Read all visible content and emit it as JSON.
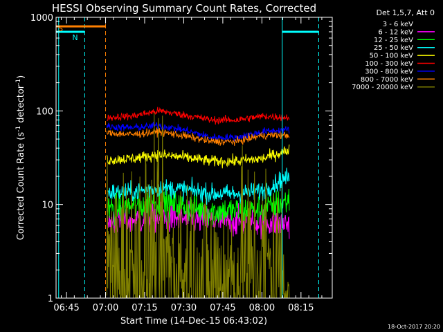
{
  "chart_data": {
    "type": "line",
    "title": "HESSI Observing Summary Count Rates, Corrected",
    "xlabel": "Start Time (14-Dec-15 06:43:02)",
    "ylabel_main": "Corrected Count Rate (s",
    "ylabel_sup1": "-1",
    "ylabel_mid": " detector",
    "ylabel_sup2": "-1",
    "ylabel_end": ")",
    "y_scale": "log",
    "ylim": [
      1,
      1000
    ],
    "xlim_minutes": [
      -2.0,
      104.0
    ],
    "x_axis_start_label": "06:43:02",
    "x_ticks": [
      {
        "minutes": 2,
        "label": "06:45"
      },
      {
        "minutes": 17,
        "label": "07:00"
      },
      {
        "minutes": 32,
        "label": "07:15"
      },
      {
        "minutes": 47,
        "label": "07:30"
      },
      {
        "minutes": 62,
        "label": "07:45"
      },
      {
        "minutes": 77,
        "label": "08:00"
      },
      {
        "minutes": 92,
        "label": "08:15"
      }
    ],
    "y_ticks": [
      {
        "value": 1,
        "label": "1"
      },
      {
        "value": 10,
        "label": "10"
      },
      {
        "value": 100,
        "label": "100"
      },
      {
        "value": 1000,
        "label": "1000"
      }
    ],
    "data_window_minutes": [
      17.5,
      87.5
    ],
    "legend_header": "Det 1,5,7, Att 0",
    "series": [
      {
        "name": "3 - 6 keV",
        "color": "#000000",
        "base": [
          1.5,
          2.2,
          2.5,
          2.2,
          2.0,
          2.2,
          2.6,
          2.0
        ],
        "noise": 0.5
      },
      {
        "name": "6 - 12 keV",
        "color": "#ff00ff",
        "base": [
          6.5,
          6.8,
          7.2,
          7.0,
          6.8,
          6.5,
          6.5,
          6.3
        ],
        "noise": 0.08
      },
      {
        "name": "12 - 25 keV",
        "color": "#00ff00",
        "base": [
          9.0,
          9.5,
          10.5,
          9.5,
          8.5,
          8.5,
          9.0,
          11.0
        ],
        "noise": 0.08
      },
      {
        "name": "25 - 50 keV",
        "color": "#00ffff",
        "base": [
          13.5,
          13.5,
          15.0,
          14.5,
          13.0,
          13.0,
          14.0,
          20.0
        ],
        "noise": 0.05
      },
      {
        "name": "50 - 100 keV",
        "color": "#ffff00",
        "base": [
          30,
          31,
          34,
          32,
          29,
          29,
          31,
          38
        ],
        "noise": 0.03
      },
      {
        "name": "100 - 300 keV",
        "color": "#ff0000",
        "base": [
          85,
          88,
          100,
          90,
          80,
          80,
          88,
          85
        ],
        "noise": 0.02
      },
      {
        "name": "300 - 800 keV",
        "color": "#0000ff",
        "base": [
          68,
          66,
          70,
          62,
          52,
          52,
          60,
          63
        ],
        "noise": 0.02
      },
      {
        "name": "800 - 7000 keV",
        "color": "#ff8000",
        "base": [
          58,
          56,
          60,
          54,
          47,
          47,
          55,
          55
        ],
        "noise": 0.02
      },
      {
        "name": "7000 - 20000 keV",
        "color": "#808000",
        "base": [
          1.6,
          2.0,
          2.4,
          1.6,
          1.3,
          1.6,
          2.2,
          1.8
        ],
        "noise": 0.6
      }
    ],
    "flags": [
      {
        "label": "S",
        "color": "#ff8000",
        "start": -2.0,
        "end": 17.0,
        "level": 800
      },
      {
        "label": "N",
        "color": "#00ffff",
        "start": -2.0,
        "end": 9.0,
        "level": 700
      },
      {
        "label": "",
        "color": "#00ffff",
        "start": 84.8,
        "end": 98.8,
        "level": 700
      }
    ],
    "markers": [
      {
        "minutes": -1.0,
        "color": "#00ffff",
        "style": "solid"
      },
      {
        "minutes": 9.0,
        "color": "#00ffff",
        "style": "dashed"
      },
      {
        "minutes": 17.0,
        "color": "#ff8000",
        "style": "dashed"
      },
      {
        "minutes": 84.8,
        "color": "#00ffff",
        "style": "solid"
      },
      {
        "minutes": 98.8,
        "color": "#00ffff",
        "style": "dashed"
      }
    ]
  },
  "footer": {
    "date": "18-Oct-2017 20:20"
  }
}
